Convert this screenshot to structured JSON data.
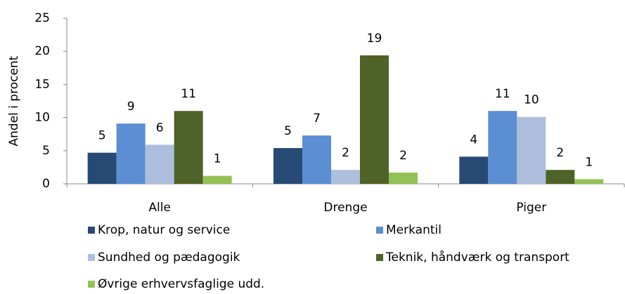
{
  "chart_data": {
    "type": "bar",
    "y_label": "Andel i procent",
    "categories": [
      "Alle",
      "Drenge",
      "Piger"
    ],
    "series": [
      {
        "name": "Krop, natur og service",
        "color": "#264a73",
        "values": [
          4.7,
          5.4,
          4.1
        ],
        "value_labels": [
          "5",
          "5",
          "4"
        ]
      },
      {
        "name": "Merkantil",
        "color": "#5b8ed3",
        "values": [
          9.1,
          7.3,
          11.0
        ],
        "value_labels": [
          "9",
          "7",
          "11"
        ]
      },
      {
        "name": "Sundhed og pædagogik",
        "color": "#adbfdc",
        "values": [
          5.9,
          2.1,
          10.1
        ],
        "value_labels": [
          "6",
          "2",
          "10"
        ]
      },
      {
        "name": "Teknik, håndværk og transport",
        "color": "#4f6228",
        "values": [
          11.0,
          19.4,
          2.1
        ],
        "value_labels": [
          "11",
          "19",
          "2"
        ]
      },
      {
        "name": "Øvrige erhvervsfaglige udd.",
        "color": "#93c153",
        "values": [
          1.2,
          1.7,
          0.7
        ],
        "value_labels": [
          "1",
          "2",
          "1"
        ]
      }
    ],
    "ylim": [
      0,
      25
    ],
    "yticks": [
      0,
      5,
      10,
      15,
      20,
      25
    ],
    "grid": false
  }
}
